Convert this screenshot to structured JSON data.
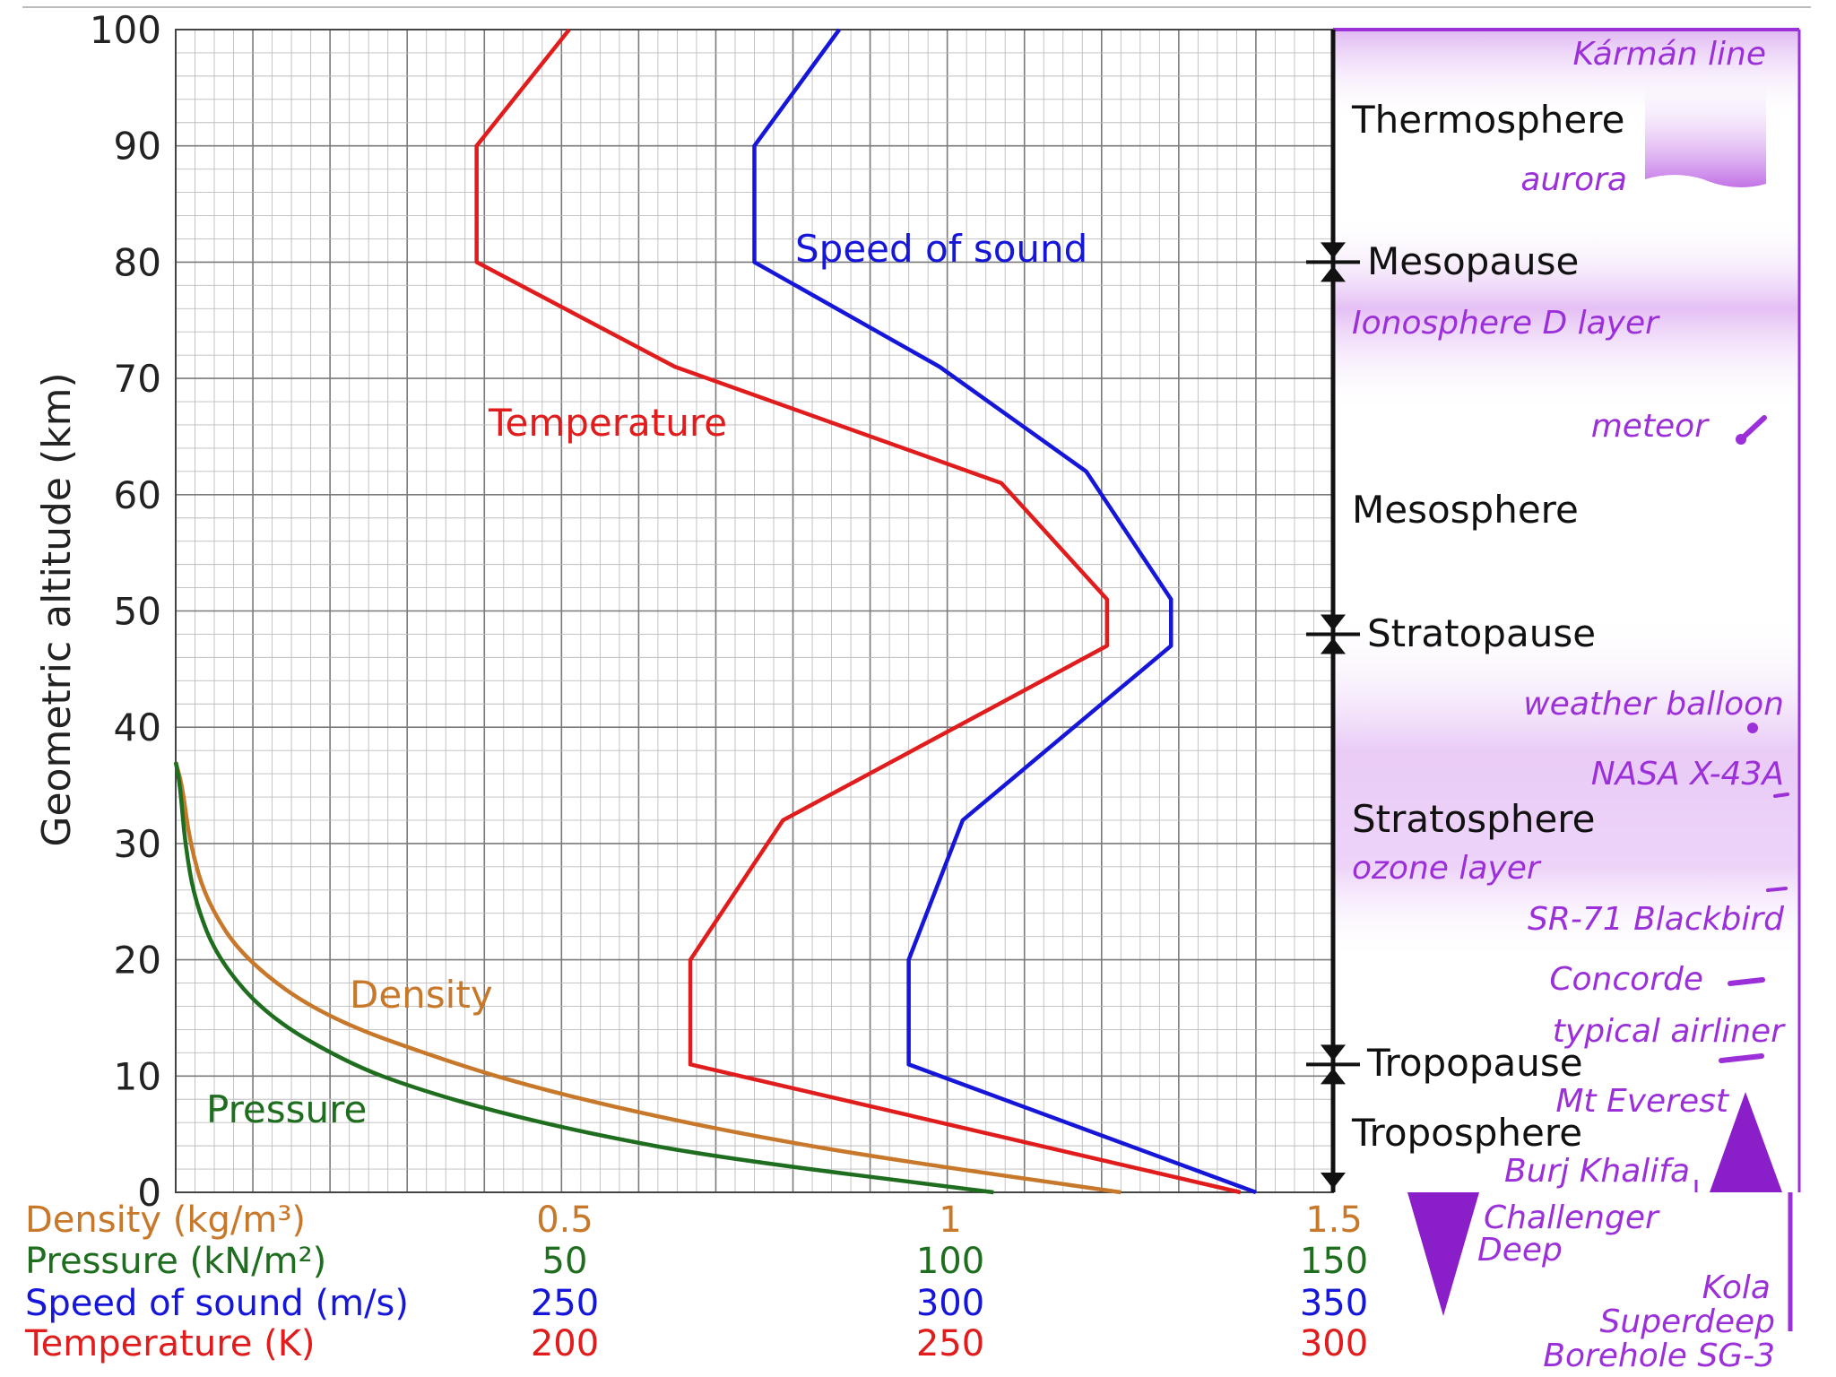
{
  "colors": {
    "density": "#c8782a",
    "pressure": "#1f6e1f",
    "speed_of_sound": "#1616d9",
    "temperature": "#e01c1c",
    "objects": "#9b30d9",
    "grid_major": "#7a7a7a",
    "grid_minor": "#bdbdbd"
  },
  "chart_data": {
    "type": "line",
    "ylabel": "Geometric altitude (km)",
    "ylim": [
      0,
      100
    ],
    "yticks": [
      "0",
      "10",
      "20",
      "30",
      "40",
      "50",
      "60",
      "70",
      "80",
      "90",
      "100"
    ],
    "grid": true,
    "x_axes": [
      {
        "key": "density",
        "label": "Density (kg/m³)",
        "ticks": [
          "0.5",
          "1",
          "1.5"
        ],
        "range": [
          0,
          1.5
        ]
      },
      {
        "key": "pressure",
        "label": "Pressure (kN/m²)",
        "ticks": [
          "50",
          "100",
          "150"
        ],
        "range": [
          0,
          150
        ]
      },
      {
        "key": "speed_of_sound",
        "label": "Speed of sound (m/s)",
        "ticks": [
          "250",
          "300",
          "350"
        ],
        "range": [
          200,
          350
        ]
      },
      {
        "key": "temperature",
        "label": "Temperature (K)",
        "ticks": [
          "200",
          "250",
          "300"
        ],
        "range": [
          150,
          300
        ]
      }
    ],
    "series": [
      {
        "name": "Temperature",
        "axis": "temperature",
        "points": [
          [
            288,
            0
          ],
          [
            216.7,
            11
          ],
          [
            216.7,
            20
          ],
          [
            228.7,
            32
          ],
          [
            270.7,
            47
          ],
          [
            270.7,
            51
          ],
          [
            257,
            61
          ],
          [
            214.7,
            71
          ],
          [
            189,
            80
          ],
          [
            189,
            90
          ],
          [
            201,
            100
          ]
        ]
      },
      {
        "name": "Speed of sound",
        "axis": "speed_of_sound",
        "points": [
          [
            340,
            0
          ],
          [
            295,
            11
          ],
          [
            295,
            20
          ],
          [
            302,
            32
          ],
          [
            329,
            47
          ],
          [
            329,
            51
          ],
          [
            318,
            62
          ],
          [
            299,
            71
          ],
          [
            275,
            80
          ],
          [
            275,
            90
          ],
          [
            286,
            100
          ]
        ]
      },
      {
        "name": "Density",
        "axis": "density",
        "points": [
          [
            1.225,
            0
          ],
          [
            0.909,
            3
          ],
          [
            0.736,
            5
          ],
          [
            0.59,
            7
          ],
          [
            0.467,
            9
          ],
          [
            0.364,
            11
          ],
          [
            0.194,
            15
          ],
          [
            0.0889,
            20
          ],
          [
            0.04,
            25
          ],
          [
            0.0184,
            30
          ],
          [
            0.0084,
            35
          ],
          [
            0.0,
            37
          ]
        ]
      },
      {
        "name": "Pressure",
        "axis": "pressure",
        "points": [
          [
            106,
            0
          ],
          [
            70.1,
            3
          ],
          [
            54.0,
            5
          ],
          [
            41.1,
            7
          ],
          [
            30.8,
            9
          ],
          [
            22.7,
            11
          ],
          [
            12.1,
            15
          ],
          [
            5.5,
            20
          ],
          [
            2.5,
            25
          ],
          [
            1.2,
            30
          ],
          [
            0.57,
            35
          ],
          [
            0.0,
            37
          ]
        ]
      }
    ],
    "series_label_texts": [
      "Temperature",
      "Speed of sound",
      "Density",
      "Pressure"
    ],
    "layers": [
      {
        "name": "Thermosphere",
        "altitude": 92
      },
      {
        "name": "Mesopause",
        "altitude": 80
      },
      {
        "name": "Mesosphere",
        "altitude": 59
      },
      {
        "name": "Stratopause",
        "altitude": 48
      },
      {
        "name": "Stratosphere",
        "altitude": 32
      },
      {
        "name": "Tropopause",
        "altitude": 11
      },
      {
        "name": "Troposphere",
        "altitude": 5
      }
    ],
    "objects": [
      {
        "name": "Kármán line",
        "altitude": 100
      },
      {
        "name": "aurora",
        "altitude": 87
      },
      {
        "name": "Ionosphere D layer",
        "altitude": 75
      },
      {
        "name": "meteor",
        "altitude": 66
      },
      {
        "name": "weather balloon",
        "altitude": 42
      },
      {
        "name": "NASA X-43A",
        "altitude": 36
      },
      {
        "name": "ozone layer",
        "altitude": 28
      },
      {
        "name": "SR-71 Blackbird",
        "altitude": 24
      },
      {
        "name": "Concorde",
        "altitude": 18
      },
      {
        "name": "typical airliner",
        "altitude": 13
      },
      {
        "name": "Mt Everest",
        "altitude": 8.8
      },
      {
        "name": "Burj Khalifa",
        "altitude": 0.8
      },
      {
        "name": "Challenger Deep",
        "altitude": -11
      },
      {
        "name": "Kola Superdeep Borehole SG-3",
        "altitude": -12
      }
    ]
  }
}
